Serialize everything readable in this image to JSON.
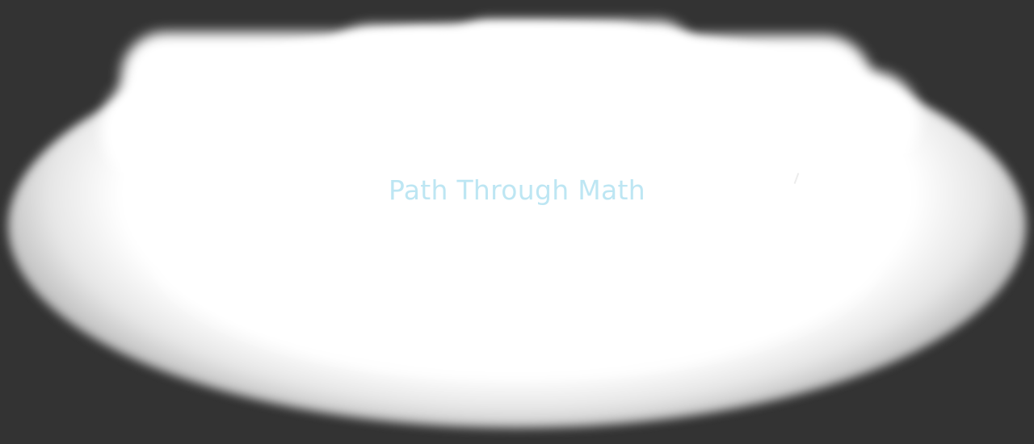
{
  "app": {
    "title": "Path Through Math"
  },
  "colors": {
    "background": "#333333",
    "glow": "#ffffff",
    "title_text": "#bde6f3"
  }
}
